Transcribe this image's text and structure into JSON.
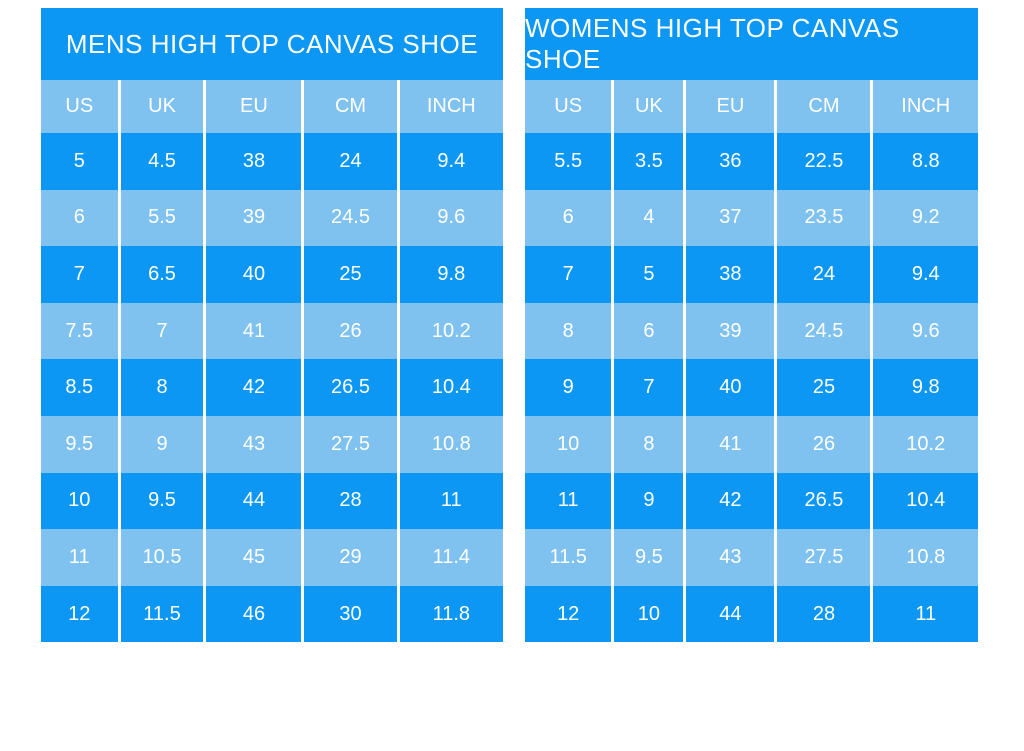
{
  "page": {
    "background": "#ffffff"
  },
  "colors": {
    "primary_blue": "#0b97f3",
    "light_blue": "#7fc1ef",
    "separator": "#ffffff",
    "text": "#ffffff"
  },
  "chart_data": [
    {
      "type": "table",
      "title": "MENS HIGH TOP CANVAS SHOE",
      "columns": [
        "US",
        "UK",
        "EU",
        "CM",
        "INCH"
      ],
      "rows": [
        [
          "5",
          "4.5",
          "38",
          "24",
          "9.4"
        ],
        [
          "6",
          "5.5",
          "39",
          "24.5",
          "9.6"
        ],
        [
          "7",
          "6.5",
          "40",
          "25",
          "9.8"
        ],
        [
          "7.5",
          "7",
          "41",
          "26",
          "10.2"
        ],
        [
          "8.5",
          "8",
          "42",
          "26.5",
          "10.4"
        ],
        [
          "9.5",
          "9",
          "43",
          "27.5",
          "10.8"
        ],
        [
          "10",
          "9.5",
          "44",
          "28",
          "11"
        ],
        [
          "11",
          "10.5",
          "45",
          "29",
          "11.4"
        ],
        [
          "12",
          "11.5",
          "46",
          "30",
          "11.8"
        ]
      ],
      "layout_hints": {
        "row_striping": [
          "dark",
          "light"
        ],
        "header_background": "light",
        "title_background": "dark"
      }
    },
    {
      "type": "table",
      "title": "WOMENS HIGH TOP CANVAS SHOE",
      "columns": [
        "US",
        "UK",
        "EU",
        "CM",
        "INCH"
      ],
      "rows": [
        [
          "5.5",
          "3.5",
          "36",
          "22.5",
          "8.8"
        ],
        [
          "6",
          "4",
          "37",
          "23.5",
          "9.2"
        ],
        [
          "7",
          "5",
          "38",
          "24",
          "9.4"
        ],
        [
          "8",
          "6",
          "39",
          "24.5",
          "9.6"
        ],
        [
          "9",
          "7",
          "40",
          "25",
          "9.8"
        ],
        [
          "10",
          "8",
          "41",
          "26",
          "10.2"
        ],
        [
          "11",
          "9",
          "42",
          "26.5",
          "10.4"
        ],
        [
          "11.5",
          "9.5",
          "43",
          "27.5",
          "10.8"
        ],
        [
          "12",
          "10",
          "44",
          "28",
          "11"
        ]
      ],
      "layout_hints": {
        "row_striping": [
          "dark",
          "light"
        ],
        "header_background": "light",
        "title_background": "dark"
      }
    }
  ]
}
